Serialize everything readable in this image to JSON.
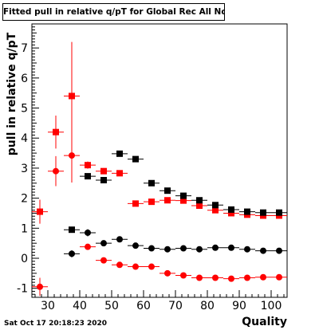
{
  "chart_data": {
    "type": "scatter",
    "title": "Fitted pull in relative q/pT for Global Rec All NoHits",
    "xlabel": "Quality",
    "ylabel": "pull in relative q/pT",
    "xlim": [
      25,
      105
    ],
    "ylim": [
      -1.3,
      7.8
    ],
    "x_ticks": [
      30,
      40,
      50,
      60,
      70,
      80,
      90,
      100
    ],
    "y_ticks": [
      -1,
      0,
      1,
      2,
      3,
      4,
      5,
      6,
      7
    ],
    "grid": false,
    "series": [
      {
        "color": "#ff0000",
        "marker": "square",
        "points": [
          {
            "x": 27.5,
            "y": 1.55,
            "err": 0.4
          },
          {
            "x": 32.5,
            "y": 4.2,
            "err": 0.55
          },
          {
            "x": 37.5,
            "y": 5.4,
            "err": 1.8
          },
          {
            "x": 42.5,
            "y": 3.1,
            "err": 0.12
          },
          {
            "x": 47.5,
            "y": 2.9,
            "err": 0.1
          },
          {
            "x": 52.5,
            "y": 2.83,
            "err": 0.08
          },
          {
            "x": 57.5,
            "y": 1.82,
            "err": 0.06
          },
          {
            "x": 62.5,
            "y": 1.88,
            "err": 0.05
          },
          {
            "x": 67.5,
            "y": 1.93,
            "err": 0.05
          },
          {
            "x": 72.5,
            "y": 1.92,
            "err": 0.05
          },
          {
            "x": 77.5,
            "y": 1.75,
            "err": 0.05
          },
          {
            "x": 82.5,
            "y": 1.6,
            "err": 0.05
          },
          {
            "x": 87.5,
            "y": 1.5,
            "err": 0.05
          },
          {
            "x": 92.5,
            "y": 1.45,
            "err": 0.05
          },
          {
            "x": 97.5,
            "y": 1.42,
            "err": 0.05
          },
          {
            "x": 102.5,
            "y": 1.42,
            "err": 0.05
          }
        ]
      },
      {
        "color": "#000000",
        "marker": "square",
        "points": [
          {
            "x": 37.5,
            "y": 0.95,
            "err": 0.05
          },
          {
            "x": 42.5,
            "y": 2.73,
            "err": 0.1
          },
          {
            "x": 47.5,
            "y": 2.6,
            "err": 0.08
          },
          {
            "x": 52.5,
            "y": 3.48,
            "err": 0.07
          },
          {
            "x": 57.5,
            "y": 3.3,
            "err": 0.06
          },
          {
            "x": 62.5,
            "y": 2.5,
            "err": 0.05
          },
          {
            "x": 67.5,
            "y": 2.25,
            "err": 0.05
          },
          {
            "x": 72.5,
            "y": 2.08,
            "err": 0.05
          },
          {
            "x": 77.5,
            "y": 1.93,
            "err": 0.05
          },
          {
            "x": 82.5,
            "y": 1.77,
            "err": 0.05
          },
          {
            "x": 87.5,
            "y": 1.62,
            "err": 0.05
          },
          {
            "x": 92.5,
            "y": 1.55,
            "err": 0.05
          },
          {
            "x": 97.5,
            "y": 1.52,
            "err": 0.05
          },
          {
            "x": 102.5,
            "y": 1.52,
            "err": 0.05
          }
        ]
      },
      {
        "color": "#000000",
        "marker": "circle",
        "points": [
          {
            "x": 37.5,
            "y": 0.15,
            "err": 0.12
          },
          {
            "x": 42.5,
            "y": 0.85,
            "err": 0.12
          },
          {
            "x": 47.5,
            "y": 0.5,
            "err": 0.06
          },
          {
            "x": 52.5,
            "y": 0.63,
            "err": 0.05
          },
          {
            "x": 57.5,
            "y": 0.42,
            "err": 0.04
          },
          {
            "x": 62.5,
            "y": 0.33,
            "err": 0.03
          },
          {
            "x": 67.5,
            "y": 0.3,
            "err": 0.03
          },
          {
            "x": 72.5,
            "y": 0.33,
            "err": 0.03
          },
          {
            "x": 77.5,
            "y": 0.3,
            "err": 0.03
          },
          {
            "x": 82.5,
            "y": 0.35,
            "err": 0.03
          },
          {
            "x": 87.5,
            "y": 0.35,
            "err": 0.03
          },
          {
            "x": 92.5,
            "y": 0.3,
            "err": 0.03
          },
          {
            "x": 97.5,
            "y": 0.25,
            "err": 0.03
          },
          {
            "x": 102.5,
            "y": 0.25,
            "err": 0.03
          }
        ]
      },
      {
        "color": "#ff0000",
        "marker": "circle",
        "points": [
          {
            "x": 27.5,
            "y": -0.95,
            "err": 0.3
          },
          {
            "x": 32.5,
            "y": 2.9,
            "err": 0.5
          },
          {
            "x": 37.5,
            "y": 3.42,
            "err": 0.9
          },
          {
            "x": 42.5,
            "y": 0.38,
            "err": 0.08
          },
          {
            "x": 47.5,
            "y": -0.07,
            "err": 0.05
          },
          {
            "x": 52.5,
            "y": -0.22,
            "err": 0.04
          },
          {
            "x": 57.5,
            "y": -0.28,
            "err": 0.03
          },
          {
            "x": 62.5,
            "y": -0.28,
            "err": 0.03
          },
          {
            "x": 67.5,
            "y": -0.5,
            "err": 0.03
          },
          {
            "x": 72.5,
            "y": -0.57,
            "err": 0.03
          },
          {
            "x": 77.5,
            "y": -0.65,
            "err": 0.03
          },
          {
            "x": 82.5,
            "y": -0.65,
            "err": 0.03
          },
          {
            "x": 87.5,
            "y": -0.68,
            "err": 0.03
          },
          {
            "x": 92.5,
            "y": -0.65,
            "err": 0.03
          },
          {
            "x": 97.5,
            "y": -0.63,
            "err": 0.03
          },
          {
            "x": 102.5,
            "y": -0.63,
            "err": 0.03
          }
        ]
      }
    ]
  },
  "footer": {
    "timestamp": "Sat Oct 17 20:18:23 2020"
  }
}
